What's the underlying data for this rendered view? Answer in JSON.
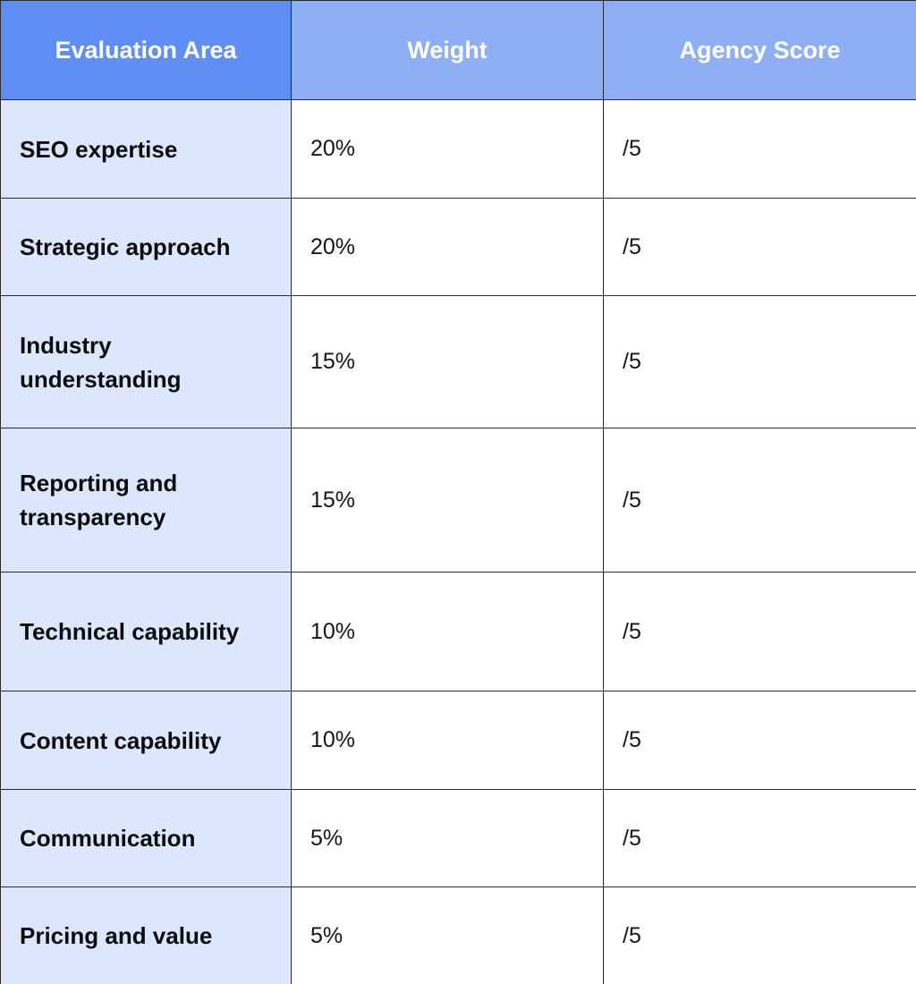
{
  "header": {
    "area": "Evaluation Area",
    "weight": "Weight",
    "score": "Agency Score"
  },
  "header_colors": {
    "area_bg": "#5f8ff5",
    "other_bg": "#8eaef6",
    "row_label_bg": "#dce6fd"
  },
  "rows": [
    {
      "area": "SEO expertise",
      "weight": "20%",
      "score": "/5"
    },
    {
      "area": "Strategic approach",
      "weight": "20%",
      "score": "/5"
    },
    {
      "area": "Industry understanding",
      "weight": "15%",
      "score": "/5"
    },
    {
      "area": "Reporting and transparency",
      "weight": "15%",
      "score": "/5"
    },
    {
      "area": "Technical capability",
      "weight": "10%",
      "score": "/5"
    },
    {
      "area": "Content capability",
      "weight": "10%",
      "score": "/5"
    },
    {
      "area": "Communication",
      "weight": "5%",
      "score": "/5"
    },
    {
      "area": "Pricing and value",
      "weight": "5%",
      "score": "/5"
    }
  ]
}
